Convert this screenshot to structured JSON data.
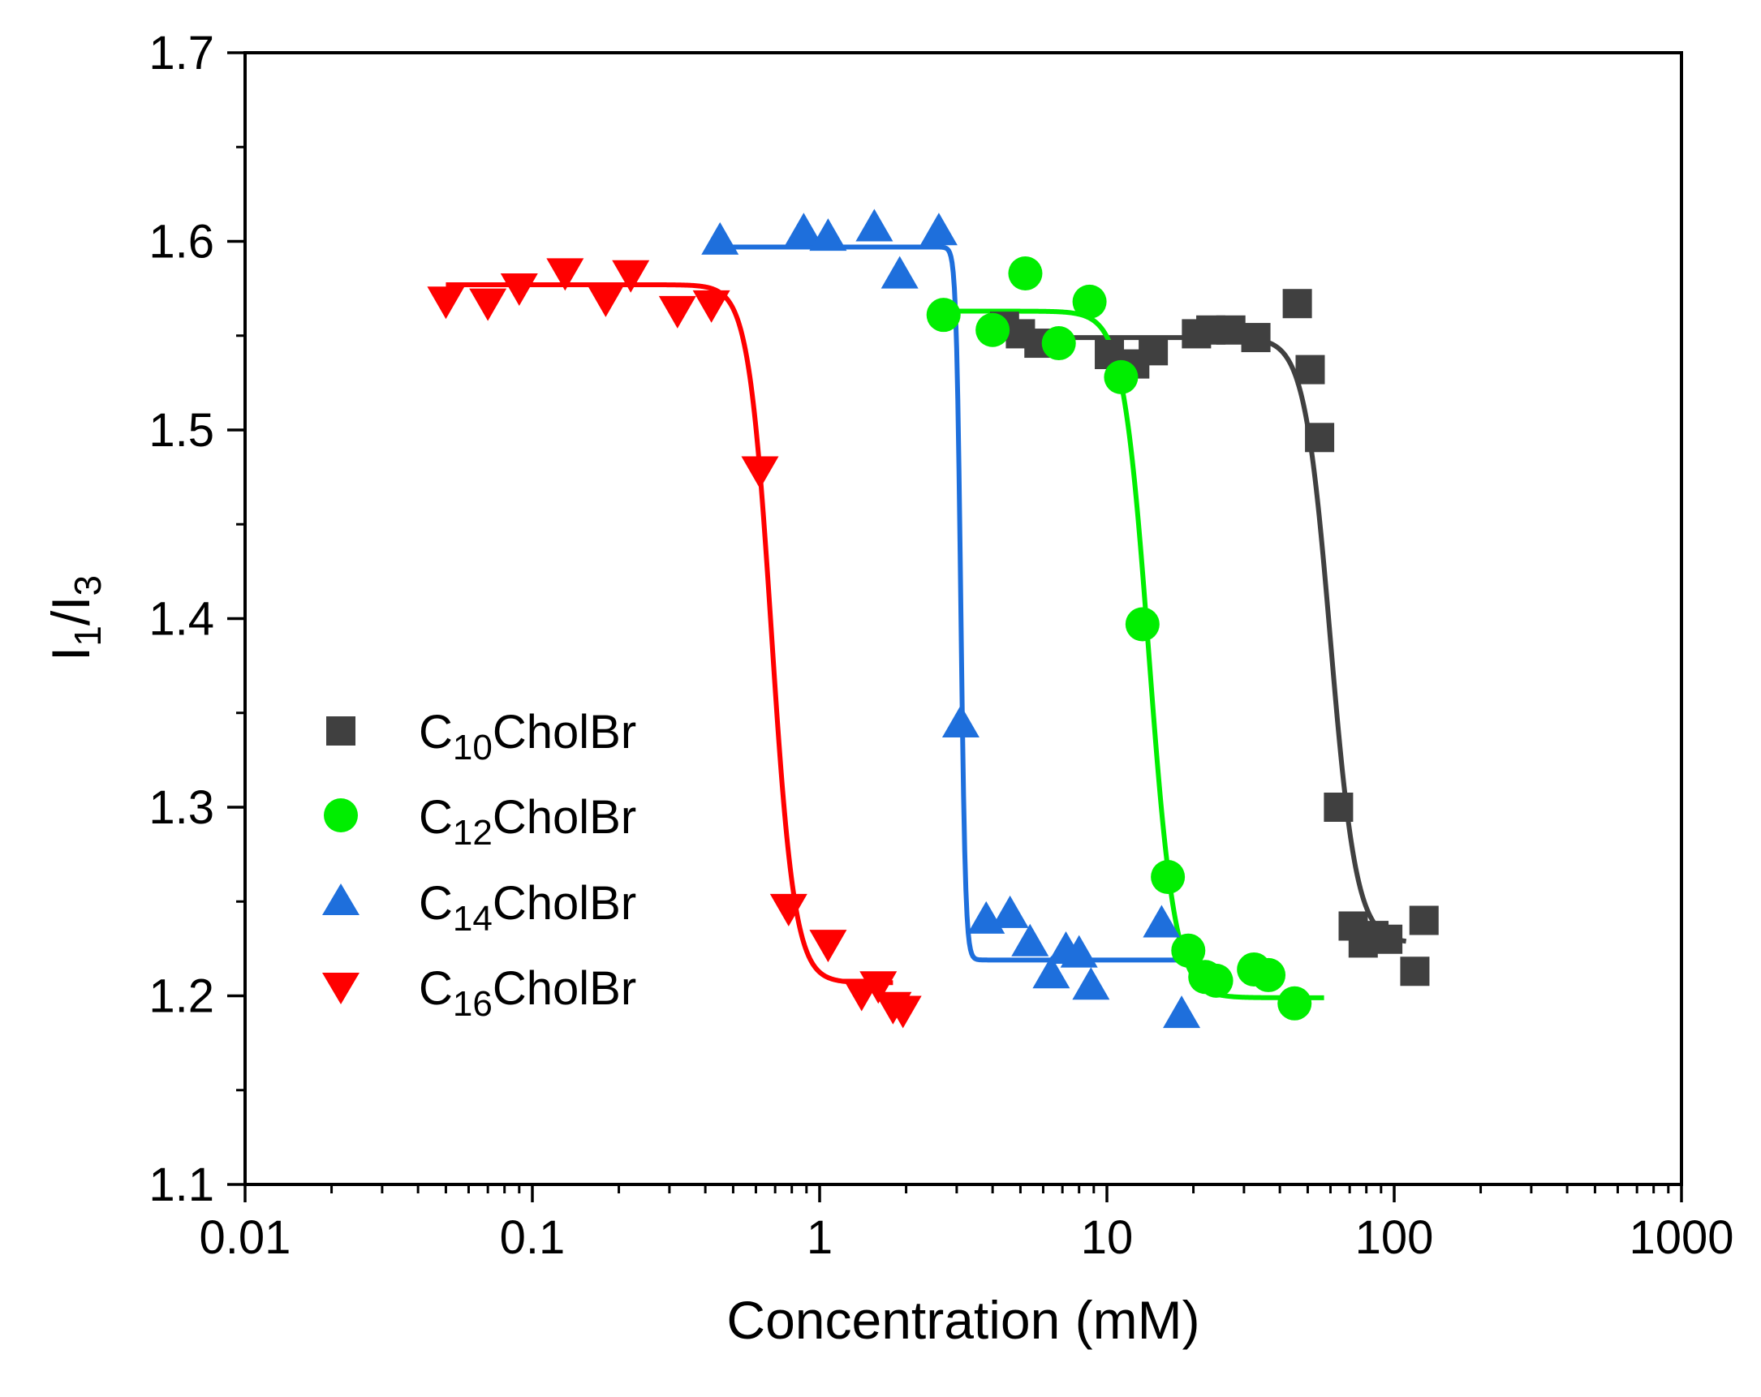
{
  "chart_data": {
    "type": "scatter",
    "x_scale": "log",
    "xlim": [
      0.01,
      1000
    ],
    "ylim": [
      1.1,
      1.7
    ],
    "xlabel": "Concentration (mM)",
    "ylabel": {
      "base1": "I",
      "sub1": "1",
      "sep": "/",
      "base2": "I",
      "sub2": "3"
    },
    "x_ticks": [
      {
        "value": 0.01,
        "label": "0.01"
      },
      {
        "value": 0.1,
        "label": "0.1"
      },
      {
        "value": 1,
        "label": "1"
      },
      {
        "value": 10,
        "label": "10"
      },
      {
        "value": 100,
        "label": "100"
      },
      {
        "value": 1000,
        "label": "1000"
      }
    ],
    "y_ticks": [
      {
        "value": 1.1,
        "label": "1.1"
      },
      {
        "value": 1.2,
        "label": "1.2"
      },
      {
        "value": 1.3,
        "label": "1.3"
      },
      {
        "value": 1.4,
        "label": "1.4"
      },
      {
        "value": 1.5,
        "label": "1.5"
      },
      {
        "value": 1.6,
        "label": "1.6"
      },
      {
        "value": 1.7,
        "label": "1.7"
      }
    ],
    "legend_position": "left",
    "series": [
      {
        "name": "C10CholBr",
        "legend": {
          "prefix": "C",
          "sub": "10",
          "suffix": "CholBr"
        },
        "marker": "square",
        "color": "#404040",
        "fit": {
          "top": 1.549,
          "bottom": 1.228,
          "x0": 60,
          "width": 0.045,
          "xmin": 4.3,
          "xmax": 110
        },
        "points": [
          [
            4.4,
            1.555
          ],
          [
            5.0,
            1.551
          ],
          [
            5.8,
            1.546
          ],
          [
            10.2,
            1.54
          ],
          [
            12.5,
            1.535
          ],
          [
            14.5,
            1.542
          ],
          [
            20.5,
            1.551
          ],
          [
            23.0,
            1.553
          ],
          [
            27.0,
            1.553
          ],
          [
            33.0,
            1.549
          ],
          [
            46.0,
            1.567
          ],
          [
            51.0,
            1.532
          ],
          [
            55.0,
            1.496
          ],
          [
            64.0,
            1.3
          ],
          [
            72.0,
            1.237
          ],
          [
            78.0,
            1.228
          ],
          [
            85.0,
            1.232
          ],
          [
            95.0,
            1.23
          ],
          [
            118.0,
            1.213
          ],
          [
            127.0,
            1.24
          ]
        ]
      },
      {
        "name": "C12CholBr",
        "legend": {
          "prefix": "C",
          "sub": "12",
          "suffix": "CholBr"
        },
        "marker": "circle",
        "color": "#00ee00",
        "fit": {
          "top": 1.563,
          "bottom": 1.199,
          "x0": 14.0,
          "width": 0.045,
          "xmin": 2.6,
          "xmax": 57
        },
        "points": [
          [
            2.7,
            1.561
          ],
          [
            4.0,
            1.553
          ],
          [
            5.2,
            1.583
          ],
          [
            6.8,
            1.546
          ],
          [
            8.7,
            1.568
          ],
          [
            11.2,
            1.528
          ],
          [
            13.3,
            1.397
          ],
          [
            16.3,
            1.263
          ],
          [
            19.2,
            1.224
          ],
          [
            22.0,
            1.21
          ],
          [
            24.0,
            1.208
          ],
          [
            32.5,
            1.214
          ],
          [
            36.5,
            1.211
          ],
          [
            45.0,
            1.196
          ]
        ]
      },
      {
        "name": "C14CholBr",
        "legend": {
          "prefix": "C",
          "sub": "14",
          "suffix": "CholBr"
        },
        "marker": "triangle-up",
        "color": "#1e6fdc",
        "fit": {
          "top": 1.597,
          "bottom": 1.219,
          "x0": 3.1,
          "width": 0.008,
          "xmin": 0.46,
          "xmax": 18.5
        },
        "points": [
          [
            0.45,
            1.599
          ],
          [
            0.88,
            1.604
          ],
          [
            1.07,
            1.601
          ],
          [
            1.55,
            1.606
          ],
          [
            1.9,
            1.581
          ],
          [
            2.6,
            1.604
          ],
          [
            3.1,
            1.343
          ],
          [
            3.8,
            1.239
          ],
          [
            4.6,
            1.242
          ],
          [
            5.4,
            1.227
          ],
          [
            6.4,
            1.21
          ],
          [
            7.2,
            1.223
          ],
          [
            8.0,
            1.221
          ],
          [
            8.8,
            1.204
          ],
          [
            15.5,
            1.237
          ],
          [
            18.2,
            1.189
          ]
        ]
      },
      {
        "name": "C16CholBr",
        "legend": {
          "prefix": "C",
          "sub": "16",
          "suffix": "CholBr"
        },
        "marker": "triangle-down",
        "color": "#ff0000",
        "fit": {
          "top": 1.577,
          "bottom": 1.207,
          "x0": 0.68,
          "width": 0.04,
          "xmin": 0.05,
          "xmax": 1.8
        },
        "points": [
          [
            0.05,
            1.57
          ],
          [
            0.07,
            1.569
          ],
          [
            0.09,
            1.577
          ],
          [
            0.13,
            1.585
          ],
          [
            0.18,
            1.571
          ],
          [
            0.22,
            1.584
          ],
          [
            0.32,
            1.565
          ],
          [
            0.42,
            1.568
          ],
          [
            0.62,
            1.48
          ],
          [
            0.78,
            1.248
          ],
          [
            1.07,
            1.229
          ],
          [
            1.4,
            1.203
          ],
          [
            1.6,
            1.207
          ],
          [
            1.8,
            1.196
          ],
          [
            1.95,
            1.194
          ]
        ]
      }
    ]
  }
}
